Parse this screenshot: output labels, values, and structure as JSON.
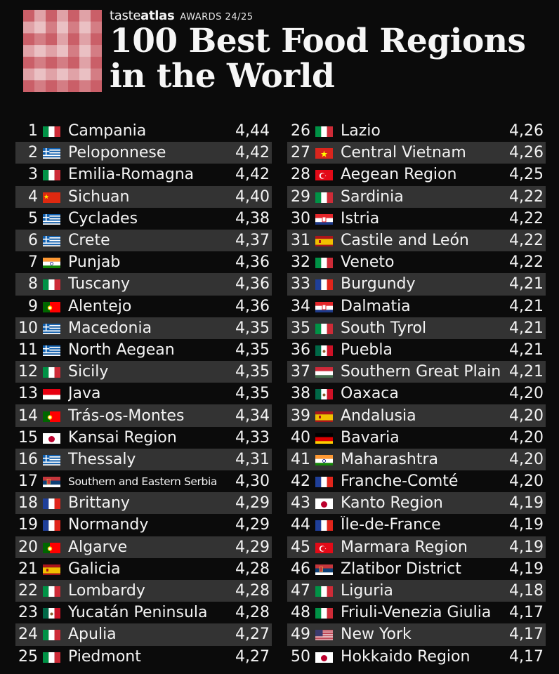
{
  "brand": {
    "name_plain": "taste",
    "name_bold": "atlas",
    "award": "AWARDS 24/25"
  },
  "title": {
    "line1": "100 Best Food Regions",
    "line2": "in the World"
  },
  "colors": {
    "background": "#0b0b0b",
    "row_alt": "#333333",
    "text": "#f3f3f3",
    "logo_red": "#c0404a",
    "logo_light": "#e8b9bd"
  },
  "left_column": [
    {
      "rank": "1",
      "name": "Campania",
      "score": "4,44",
      "flag": "italy"
    },
    {
      "rank": "2",
      "name": "Peloponnese",
      "score": "4,42",
      "flag": "greece"
    },
    {
      "rank": "3",
      "name": "Emilia-Romagna",
      "score": "4,42",
      "flag": "italy"
    },
    {
      "rank": "4",
      "name": "Sichuan",
      "score": "4,40",
      "flag": "china"
    },
    {
      "rank": "5",
      "name": "Cyclades",
      "score": "4,38",
      "flag": "greece"
    },
    {
      "rank": "6",
      "name": "Crete",
      "score": "4,37",
      "flag": "greece"
    },
    {
      "rank": "7",
      "name": "Punjab",
      "score": "4,36",
      "flag": "india"
    },
    {
      "rank": "8",
      "name": "Tuscany",
      "score": "4,36",
      "flag": "italy"
    },
    {
      "rank": "9",
      "name": "Alentejo",
      "score": "4,36",
      "flag": "portugal"
    },
    {
      "rank": "10",
      "name": "Macedonia",
      "score": "4,35",
      "flag": "greece"
    },
    {
      "rank": "11",
      "name": "North Aegean",
      "score": "4,35",
      "flag": "greece"
    },
    {
      "rank": "12",
      "name": "Sicily",
      "score": "4,35",
      "flag": "italy"
    },
    {
      "rank": "13",
      "name": "Java",
      "score": "4,35",
      "flag": "indonesia"
    },
    {
      "rank": "14",
      "name": "Trás-os-Montes",
      "score": "4,34",
      "flag": "portugal"
    },
    {
      "rank": "15",
      "name": "Kansai Region",
      "score": "4,33",
      "flag": "japan"
    },
    {
      "rank": "16",
      "name": "Thessaly",
      "score": "4,31",
      "flag": "greece"
    },
    {
      "rank": "17",
      "name": "Southern and Eastern Serbia",
      "score": "4,30",
      "flag": "serbia"
    },
    {
      "rank": "18",
      "name": "Brittany",
      "score": "4,29",
      "flag": "france"
    },
    {
      "rank": "19",
      "name": "Normandy",
      "score": "4,29",
      "flag": "france"
    },
    {
      "rank": "20",
      "name": "Algarve",
      "score": "4,29",
      "flag": "portugal"
    },
    {
      "rank": "21",
      "name": "Galicia",
      "score": "4,28",
      "flag": "spain"
    },
    {
      "rank": "22",
      "name": "Lombardy",
      "score": "4,28",
      "flag": "italy"
    },
    {
      "rank": "23",
      "name": "Yucatán Peninsula",
      "score": "4,28",
      "flag": "mexico"
    },
    {
      "rank": "24",
      "name": "Apulia",
      "score": "4,27",
      "flag": "italy"
    },
    {
      "rank": "25",
      "name": "Piedmont",
      "score": "4,27",
      "flag": "italy"
    }
  ],
  "right_column": [
    {
      "rank": "26",
      "name": "Lazio",
      "score": "4,26",
      "flag": "italy"
    },
    {
      "rank": "27",
      "name": "Central Vietnam",
      "score": "4,26",
      "flag": "vietnam"
    },
    {
      "rank": "28",
      "name": "Aegean Region",
      "score": "4,25",
      "flag": "turkey"
    },
    {
      "rank": "29",
      "name": "Sardinia",
      "score": "4,22",
      "flag": "italy"
    },
    {
      "rank": "30",
      "name": "Istria",
      "score": "4,22",
      "flag": "croatia"
    },
    {
      "rank": "31",
      "name": "Castile and León",
      "score": "4,22",
      "flag": "spain"
    },
    {
      "rank": "32",
      "name": "Veneto",
      "score": "4,22",
      "flag": "italy"
    },
    {
      "rank": "33",
      "name": "Burgundy",
      "score": "4,21",
      "flag": "france"
    },
    {
      "rank": "34",
      "name": "Dalmatia",
      "score": "4,21",
      "flag": "croatia"
    },
    {
      "rank": "35",
      "name": "South Tyrol",
      "score": "4,21",
      "flag": "italy"
    },
    {
      "rank": "36",
      "name": "Puebla",
      "score": "4,21",
      "flag": "mexico"
    },
    {
      "rank": "37",
      "name": "Southern Great Plain",
      "score": "4,21",
      "flag": "hungary"
    },
    {
      "rank": "38",
      "name": "Oaxaca",
      "score": "4,20",
      "flag": "mexico"
    },
    {
      "rank": "39",
      "name": "Andalusia",
      "score": "4,20",
      "flag": "spain"
    },
    {
      "rank": "40",
      "name": "Bavaria",
      "score": "4,20",
      "flag": "germany"
    },
    {
      "rank": "41",
      "name": "Maharashtra",
      "score": "4,20",
      "flag": "india"
    },
    {
      "rank": "42",
      "name": "Franche-Comté",
      "score": "4,20",
      "flag": "france"
    },
    {
      "rank": "43",
      "name": "Kanto Region",
      "score": "4,19",
      "flag": "japan"
    },
    {
      "rank": "44",
      "name": "Île-de-France",
      "score": "4,19",
      "flag": "france"
    },
    {
      "rank": "45",
      "name": "Marmara Region",
      "score": "4,19",
      "flag": "turkey"
    },
    {
      "rank": "46",
      "name": "Zlatibor District",
      "score": "4,19",
      "flag": "serbia"
    },
    {
      "rank": "47",
      "name": "Liguria",
      "score": "4,18",
      "flag": "italy"
    },
    {
      "rank": "48",
      "name": "Friuli-Venezia Giulia",
      "score": "4,17",
      "flag": "italy"
    },
    {
      "rank": "49",
      "name": "New York",
      "score": "4,17",
      "flag": "usa"
    },
    {
      "rank": "50",
      "name": "Hokkaido Region",
      "score": "4,17",
      "flag": "japan"
    }
  ]
}
